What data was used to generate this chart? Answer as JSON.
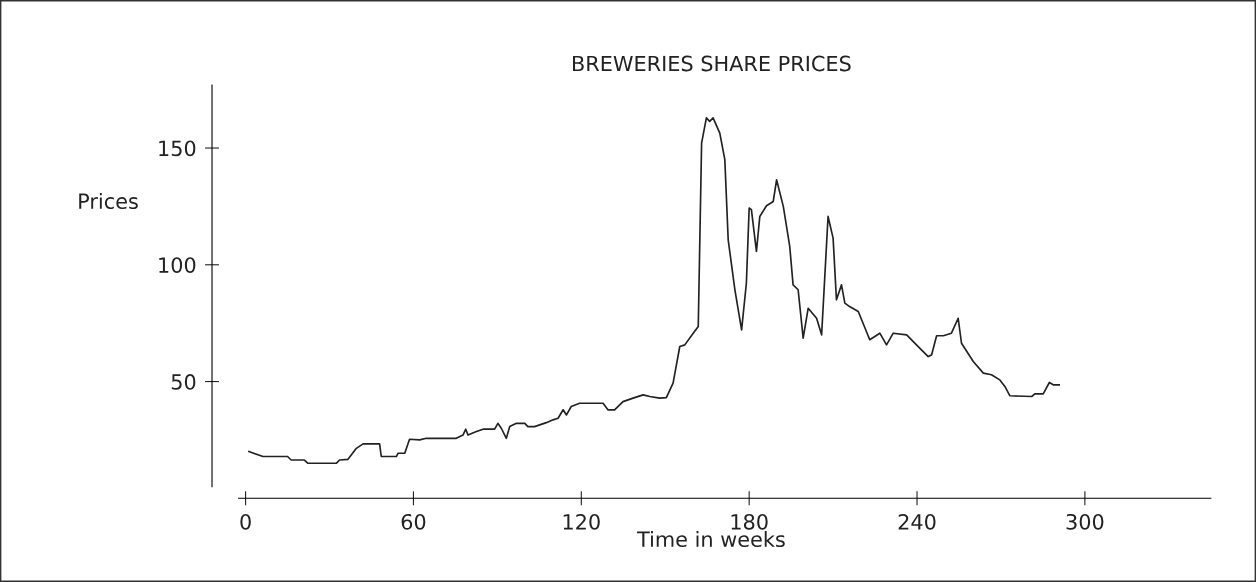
{
  "chart_data": {
    "type": "line",
    "title": "BREWERIES SHARE PRICES",
    "xlabel": "Time in weeks",
    "ylabel": "Prices",
    "xlim": [
      -12,
      345
    ],
    "ylim": [
      0,
      177
    ],
    "xticks": [
      0,
      60,
      120,
      180,
      240,
      300
    ],
    "yticks": [
      50,
      100,
      150
    ],
    "grid": false,
    "legend": false,
    "marker": "none",
    "line_style": "solid",
    "series": [
      {
        "color": "#222222",
        "x": [
          1.2,
          6.2,
          15,
          16.3,
          21,
          22.3,
          32.4,
          33.6,
          36.6,
          39.6,
          42,
          47.9,
          48.5,
          53.9,
          54.5,
          56.9,
          58.6,
          62.2,
          64.6,
          75.3,
          77.7,
          78.7,
          79.5,
          82.5,
          84.9,
          89,
          90.2,
          91.4,
          93.2,
          94.4,
          96.8,
          99.8,
          100.9,
          103.3,
          107.5,
          109.9,
          111.7,
          113.5,
          114.7,
          116.4,
          119.4,
          127.8,
          129.5,
          131.9,
          134.9,
          138.5,
          142.1,
          144.5,
          148,
          150.4,
          152.8,
          155.2,
          157,
          160,
          161.8,
          163,
          164.7,
          165.9,
          167.1,
          169.5,
          171.3,
          172.5,
          174.9,
          177.3,
          179,
          180,
          180.8,
          182.6,
          183.8,
          186.2,
          188.6,
          189.8,
          192.2,
          194.5,
          195.7,
          197.5,
          199.3,
          201.1,
          204.1,
          205.9,
          208.2,
          210,
          211.2,
          213,
          214.2,
          215.9,
          219,
          223.1,
          224.9,
          226.7,
          229.1,
          231.5,
          236.3,
          239.8,
          244,
          245.2,
          247,
          249.4,
          252.3,
          254.7,
          255.9,
          260.1,
          263.7,
          266.6,
          269.6,
          271.4,
          273.2,
          281,
          282.1,
          285.1,
          287.3,
          288.7,
          290.8
        ],
        "values": [
          20,
          17.9,
          17.9,
          16.4,
          16.4,
          15,
          15,
          16.4,
          16.7,
          21.4,
          23.3,
          23.3,
          17.9,
          17.9,
          19.3,
          19.3,
          25.3,
          25,
          25.7,
          25.7,
          27.1,
          29.6,
          27.1,
          28.6,
          29.6,
          29.6,
          32.1,
          30,
          25.7,
          30.7,
          32.1,
          32.1,
          30.7,
          30.7,
          32.4,
          33.6,
          34.3,
          37.9,
          35.7,
          39.3,
          40.7,
          40.7,
          37.9,
          37.9,
          41.4,
          42.9,
          44.3,
          43.6,
          42.9,
          43.1,
          49.3,
          65,
          65.7,
          70.7,
          73.6,
          152.1,
          162.9,
          161.4,
          162.9,
          156.4,
          145,
          110.7,
          89.3,
          72.1,
          92.1,
          124.3,
          123.6,
          105.7,
          120.7,
          125.3,
          127.1,
          136.4,
          125,
          107.9,
          91.4,
          89.3,
          68.6,
          81.4,
          77.1,
          70,
          120.7,
          111.4,
          85,
          91.4,
          83.6,
          82.1,
          80,
          67.9,
          69.3,
          70.7,
          65.7,
          70.7,
          70,
          65.7,
          60.7,
          61.4,
          69.6,
          69.6,
          70.7,
          77.1,
          66.4,
          58.6,
          53.6,
          52.9,
          50.7,
          47.9,
          43.9,
          43.6,
          44.7,
          44.7,
          49.6,
          48.6,
          48.6
        ]
      }
    ]
  }
}
